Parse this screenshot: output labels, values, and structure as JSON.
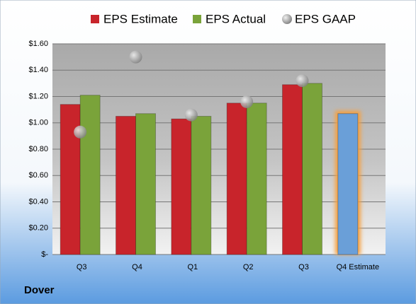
{
  "chart_data": {
    "type": "bar",
    "title": "Dover",
    "categories": [
      "Q3",
      "Q4",
      "Q1",
      "Q2",
      "Q3",
      "Q4 Estimate"
    ],
    "series": [
      {
        "name": "EPS Estimate",
        "color": "#c8242b",
        "colors": [
          "#c8242b",
          "#c8242b",
          "#c8242b",
          "#c8242b",
          "#c8242b",
          "#6a9fd8"
        ],
        "values": [
          1.14,
          1.05,
          1.03,
          1.15,
          1.29,
          1.07
        ]
      },
      {
        "name": "EPS Actual",
        "color": "#7aa33a",
        "values": [
          1.21,
          1.07,
          1.05,
          1.15,
          1.3,
          null
        ]
      },
      {
        "name": "EPS GAAP",
        "color": "#a0a0a0",
        "values": [
          0.93,
          1.5,
          1.06,
          1.16,
          1.32,
          null
        ]
      }
    ],
    "ylim": [
      0,
      1.6
    ],
    "yticks": [
      {
        "value": 0,
        "label": "$-"
      },
      {
        "value": 0.2,
        "label": "$0.20"
      },
      {
        "value": 0.4,
        "label": "$0.40"
      },
      {
        "value": 0.6,
        "label": "$0.60"
      },
      {
        "value": 0.8,
        "label": "$0.80"
      },
      {
        "value": 1.0,
        "label": "$1.00"
      },
      {
        "value": 1.2,
        "label": "$1.20"
      },
      {
        "value": 1.4,
        "label": "$1.40"
      },
      {
        "value": 1.6,
        "label": "$1.60"
      }
    ],
    "grid": true,
    "legend": "top"
  }
}
